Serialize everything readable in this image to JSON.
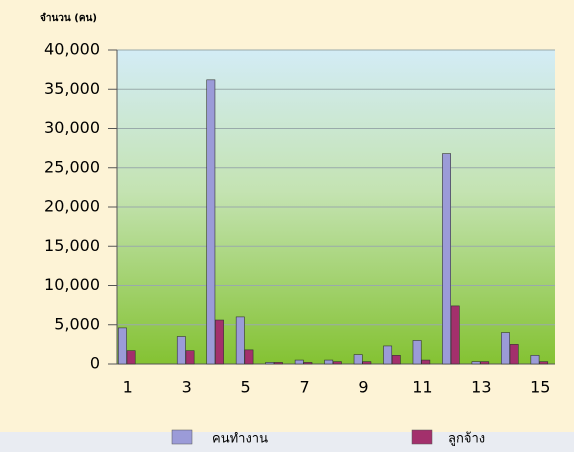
{
  "chart_data": {
    "type": "bar",
    "y_label": "จำนวน (คน)",
    "categories": [
      "1",
      null,
      "3",
      null,
      "5",
      null,
      "7",
      null,
      "9",
      null,
      "11",
      null,
      "13",
      null,
      "15"
    ],
    "series": [
      {
        "name": "คนทำงาน",
        "color": "#9b9bd8",
        "values": [
          4600,
          0,
          3500,
          36200,
          6000,
          200,
          500,
          500,
          1200,
          2300,
          3000,
          26800,
          300,
          4000,
          1100
        ]
      },
      {
        "name": "ลูกจ้าง",
        "color": "#a3306c",
        "values": [
          1700,
          0,
          1700,
          5600,
          1800,
          200,
          200,
          300,
          300,
          1100,
          500,
          7400,
          300,
          2500,
          300
        ]
      }
    ],
    "ylim": [
      0,
      40000
    ],
    "yticks": [
      0,
      {
        "value": 5000,
        "label": "5,000"
      },
      {
        "value": 10000,
        "label": "10,000"
      },
      {
        "value": 15000,
        "label": "15,000"
      },
      {
        "value": 20000,
        "label": "20,000"
      },
      {
        "value": 25000,
        "label": "25,000"
      },
      {
        "value": 30000,
        "label": "30,000"
      },
      {
        "value": 35000,
        "label": "35,000"
      },
      {
        "value": 40000,
        "label": "40,000"
      }
    ],
    "grid": true,
    "legend": "bottom"
  }
}
